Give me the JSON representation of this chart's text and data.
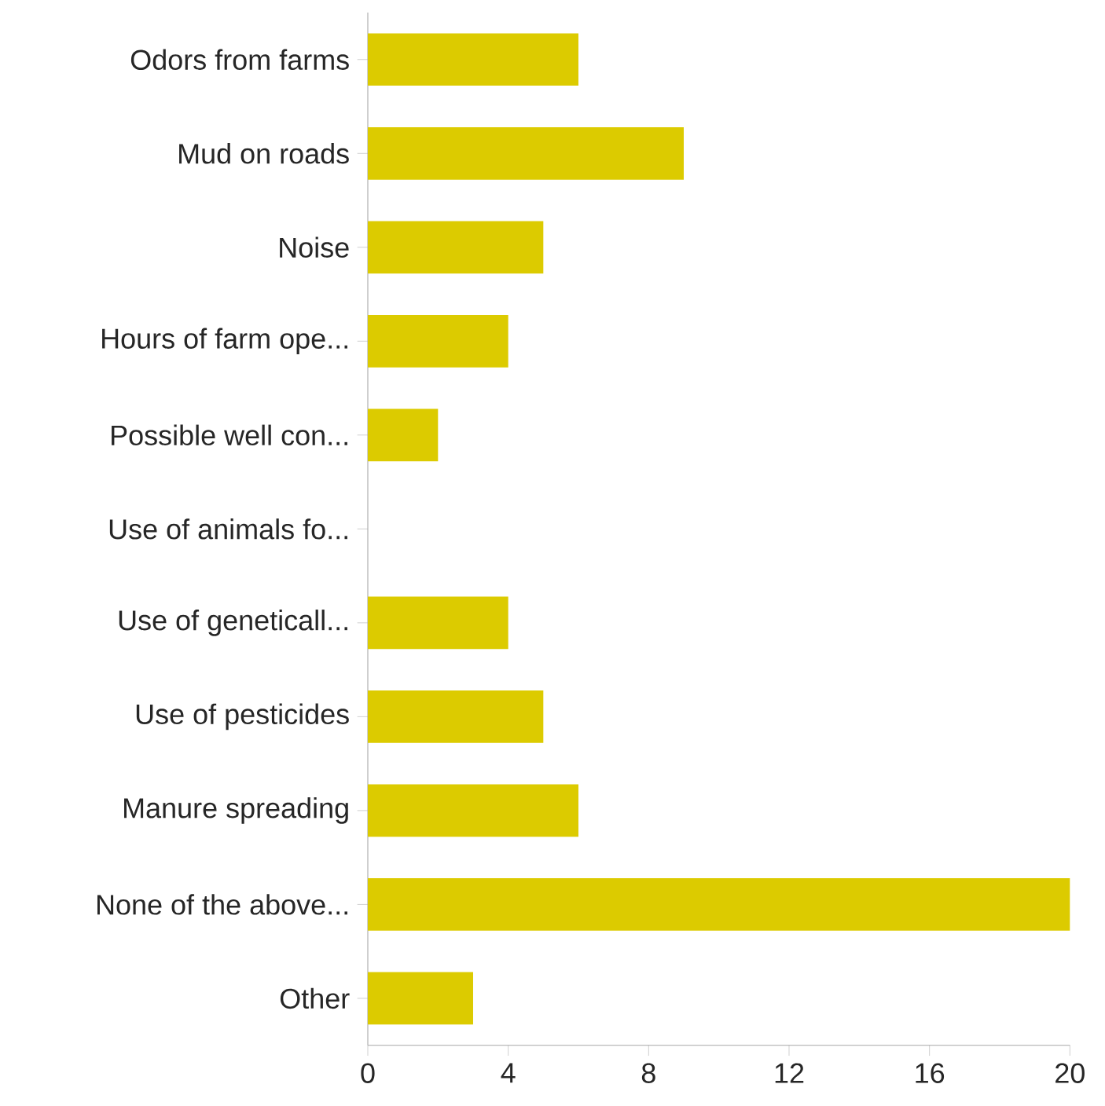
{
  "chart_data": {
    "type": "bar",
    "orientation": "horizontal",
    "categories": [
      "Odors from farms",
      "Mud on roads",
      "Noise",
      "Hours of farm ope...",
      "Possible well con...",
      "Use of animals fo...",
      "Use of geneticall...",
      "Use of pesticides",
      "Manure spreading",
      "None of the above...",
      "Other"
    ],
    "values": [
      6,
      9,
      5,
      4,
      2,
      0,
      4,
      5,
      6,
      20,
      3
    ],
    "color": "#dccb00",
    "xlim": [
      0,
      20
    ],
    "xticks": [
      0,
      4,
      8,
      12,
      16,
      20
    ]
  }
}
